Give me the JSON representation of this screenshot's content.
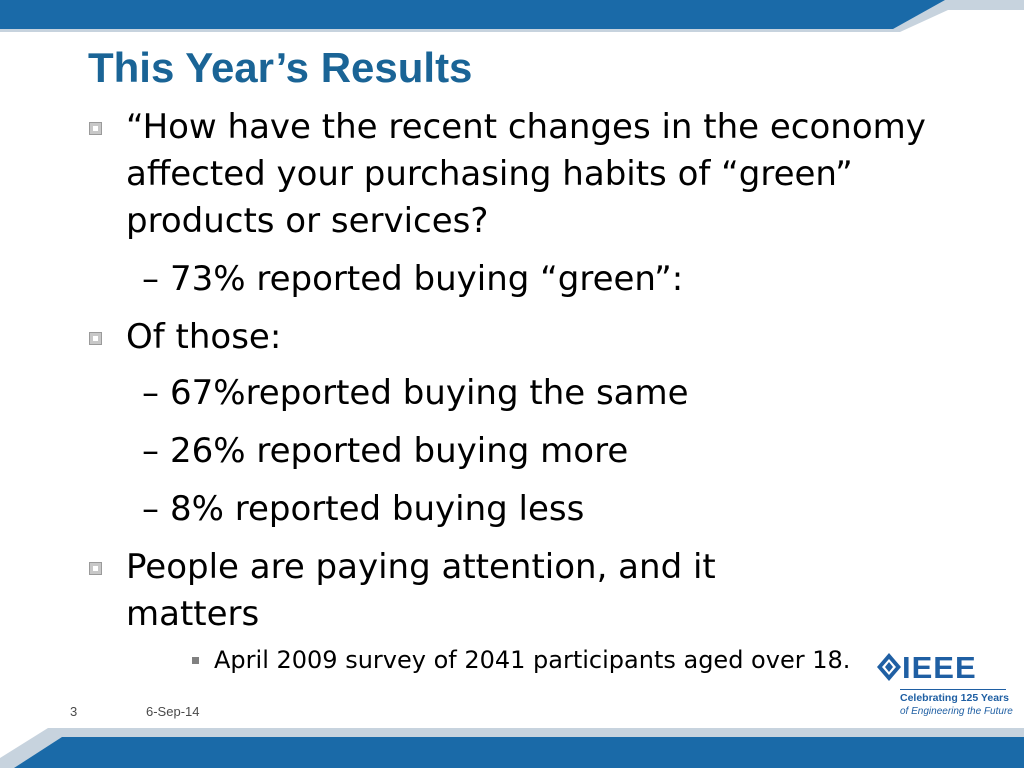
{
  "slide": {
    "title": "This Year’s Results",
    "bullets": [
      {
        "level": 1,
        "text": "“How have the recent changes in the economy affected your purchasing habits of “green” products or services?"
      },
      {
        "level": 2,
        "text": "73% reported buying “green”:"
      },
      {
        "level": 1,
        "text": "Of those:"
      },
      {
        "level": 2,
        "text": "67%reported buying the same"
      },
      {
        "level": 2,
        "text": "26% reported buying more"
      },
      {
        "level": 2,
        "text": "8% reported buying less"
      },
      {
        "level": 1,
        "text": "People are paying attention, and it matters"
      },
      {
        "level": 3,
        "text": "April 2009 survey of 2041 participants aged over 18."
      }
    ],
    "dash_glyph": "–"
  },
  "footer": {
    "page_number": "3",
    "date": "6-Sep-14"
  },
  "logo": {
    "wordmark": "IEEE",
    "tagline_line1": "Celebrating 125 Years",
    "tagline_line2": "of Engineering the Future"
  },
  "colors": {
    "band_blue": "#1a6aa8",
    "band_light": "#b9c8d6",
    "title_blue": "#1a6496"
  }
}
